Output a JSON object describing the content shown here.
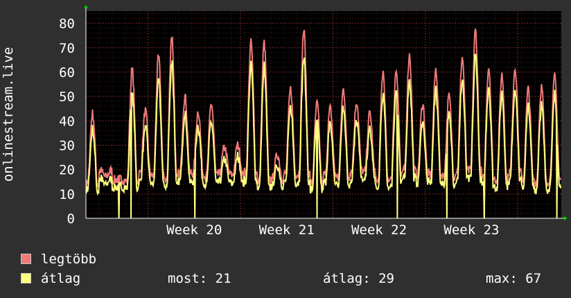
{
  "chart_data": {
    "type": "line",
    "ylabel": "onlinestream.live",
    "ylim": [
      0,
      85
    ],
    "yticks": [
      0,
      10,
      20,
      30,
      40,
      50,
      60,
      70,
      80
    ],
    "x_tick_labels": [
      "Week 20",
      "Week 21",
      "Week 22",
      "Week 23"
    ],
    "grid": true,
    "legend_position": "bottom-left",
    "series": [
      {
        "name": "legtöbb",
        "color": "#f07a7a",
        "daily_peaks": [
          43,
          17,
          16,
          61,
          44,
          66,
          75,
          50,
          44,
          47,
          29,
          30,
          72,
          72,
          26,
          53,
          77,
          47,
          45,
          53,
          48,
          43,
          60,
          61,
          67,
          47,
          61,
          50,
          66,
          77,
          62,
          59,
          62,
          53,
          54,
          58
        ]
      },
      {
        "name": "átlag",
        "color": "#ffff80",
        "daily_peaks": [
          38,
          15,
          14,
          54,
          36,
          58,
          66,
          40,
          35,
          40,
          25,
          26,
          63,
          64,
          22,
          48,
          68,
          38,
          35,
          45,
          40,
          38,
          51,
          55,
          58,
          40,
          52,
          43,
          57,
          66,
          54,
          50,
          53,
          46,
          45,
          50
        ]
      }
    ]
  },
  "legend": {
    "max_label": "legtöbb",
    "avg_label": "átlag",
    "max_color": "#f07a7a",
    "avg_color": "#ffff80"
  },
  "stats": {
    "now": "most: 21",
    "avg": "átlag: 29",
    "max": "max: 67"
  }
}
